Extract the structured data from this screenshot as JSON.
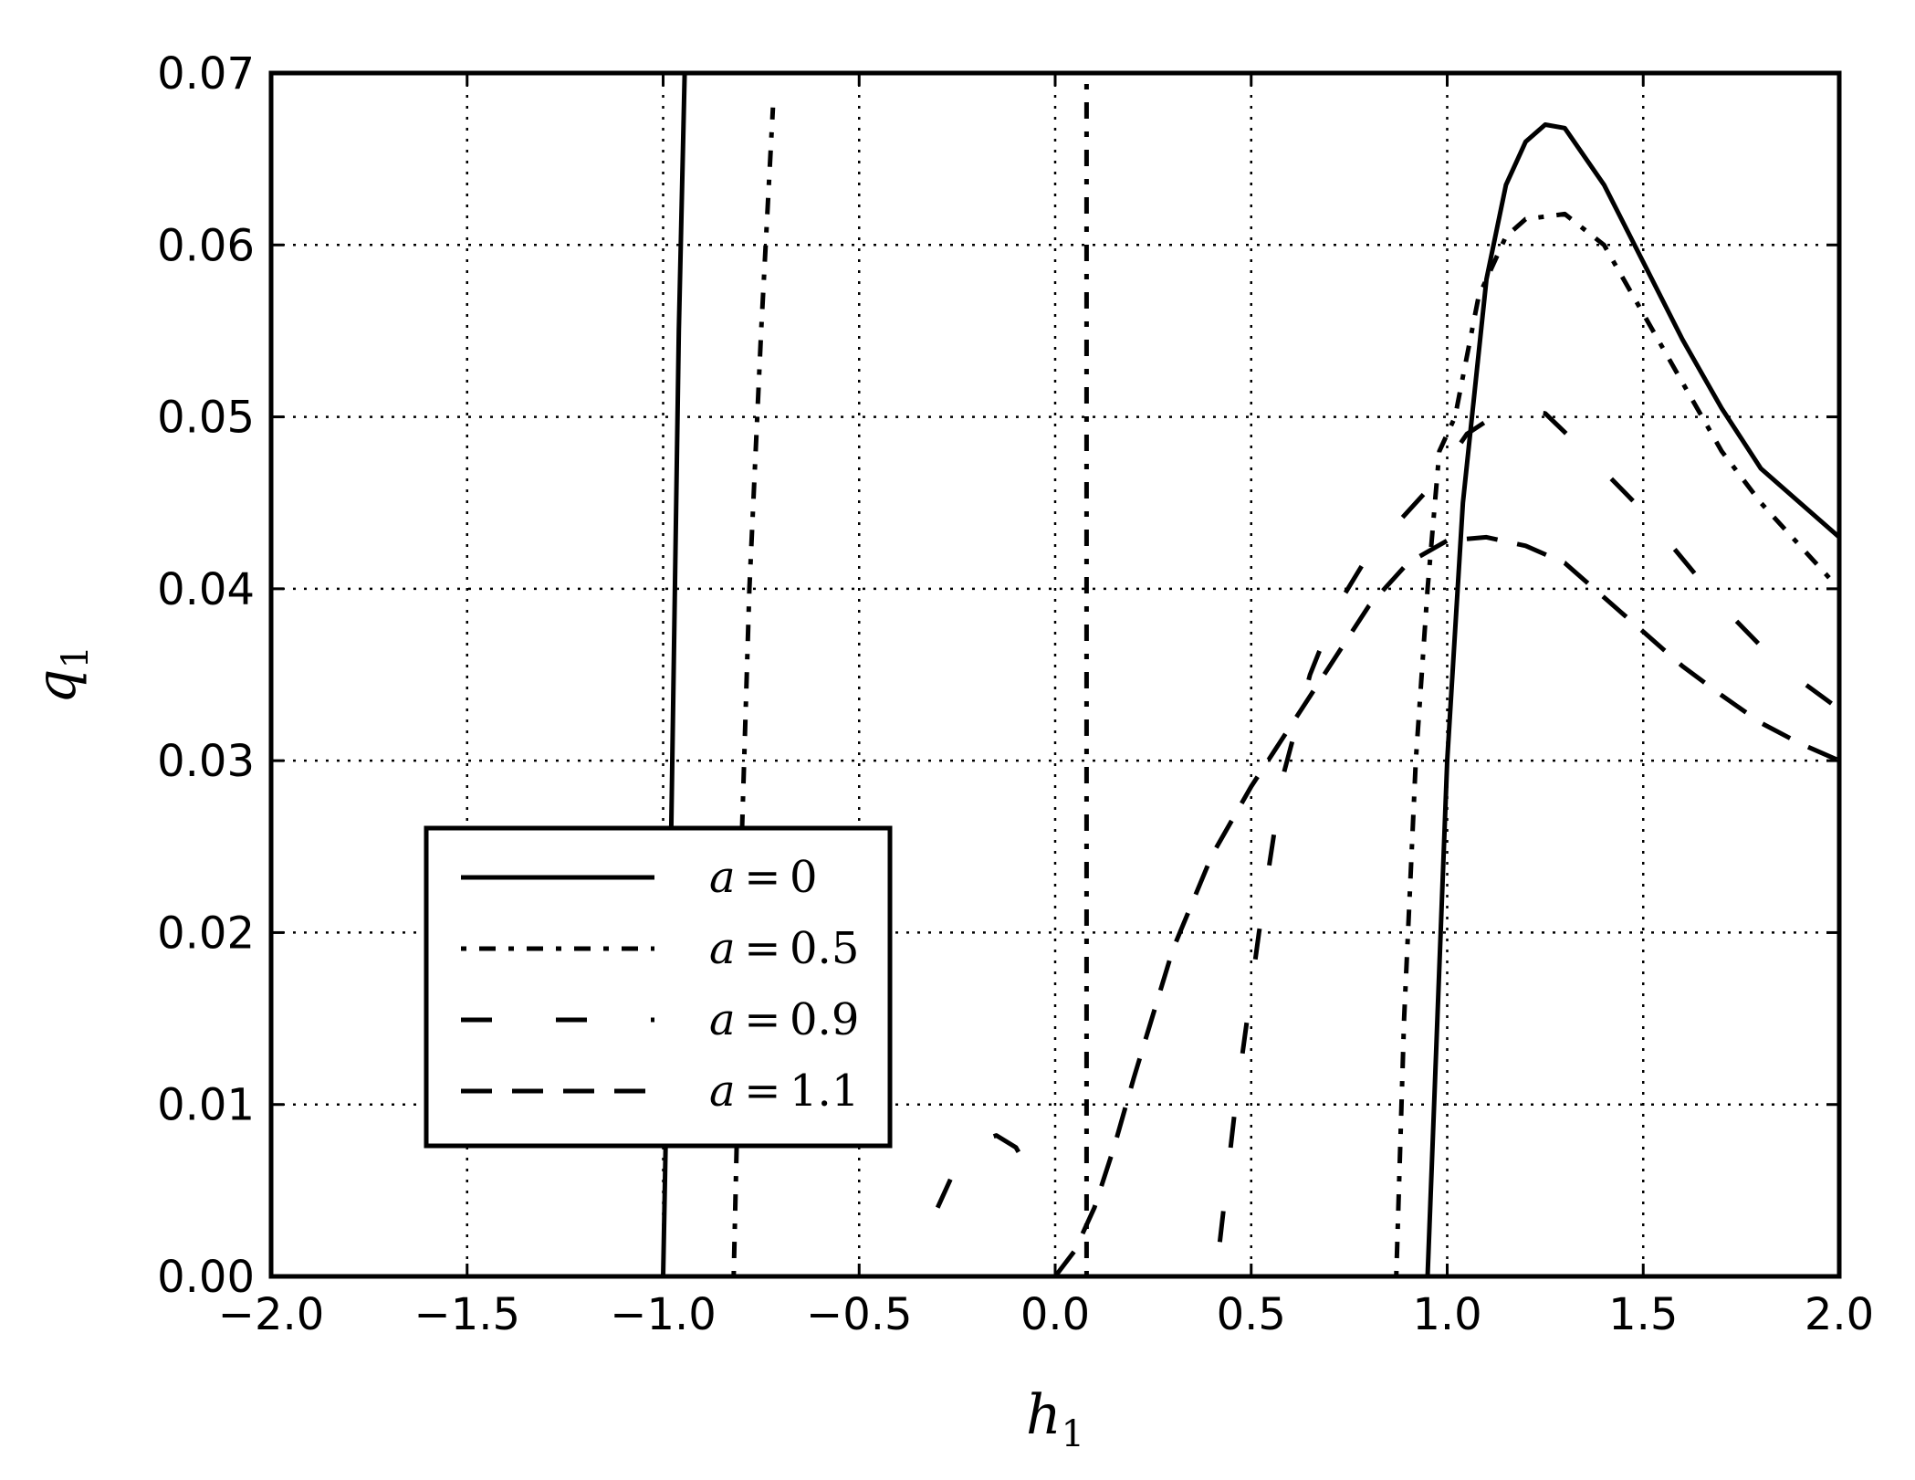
{
  "chart_data": {
    "type": "line",
    "title": "",
    "xlabel": "h",
    "xlabel_sub": "1",
    "ylabel": "q",
    "ylabel_sub": "1",
    "xlim": [
      -2.0,
      2.0
    ],
    "ylim": [
      0.0,
      0.07
    ],
    "x_ticks": [
      -2.0,
      -1.5,
      -1.0,
      -0.5,
      0.0,
      0.5,
      1.0,
      1.5,
      2.0
    ],
    "x_tick_labels": [
      "−2.0",
      "−1.5",
      "−1.0",
      "−0.5",
      "0.0",
      "0.5",
      "1.0",
      "1.5",
      "2.0"
    ],
    "y_ticks": [
      0.0,
      0.01,
      0.02,
      0.03,
      0.04,
      0.05,
      0.06,
      0.07
    ],
    "y_tick_labels": [
      "0.00",
      "0.01",
      "0.02",
      "0.03",
      "0.04",
      "0.05",
      "0.06",
      "0.07"
    ],
    "grid": true,
    "grid_style": "dotted",
    "legend_position": "lower-left",
    "series": [
      {
        "name": "a=0",
        "legend_label": "a = 0",
        "style": "solid",
        "color": "#000000",
        "segments": [
          [
            [
              -1.0,
              0.0
            ],
            [
              -0.99,
              0.012
            ],
            [
              -0.98,
              0.025
            ],
            [
              -0.97,
              0.04
            ],
            [
              -0.96,
              0.055
            ],
            [
              -0.945,
              0.07
            ]
          ],
          [
            [
              0.95,
              0.0
            ],
            [
              0.97,
              0.012
            ],
            [
              1.0,
              0.03
            ],
            [
              1.04,
              0.045
            ],
            [
              1.1,
              0.058
            ],
            [
              1.15,
              0.0635
            ],
            [
              1.2,
              0.066
            ],
            [
              1.25,
              0.067
            ],
            [
              1.3,
              0.0668
            ],
            [
              1.4,
              0.0635
            ],
            [
              1.5,
              0.059
            ],
            [
              1.6,
              0.0545
            ],
            [
              1.7,
              0.0505
            ],
            [
              1.8,
              0.047
            ],
            [
              1.9,
              0.045
            ],
            [
              2.0,
              0.043
            ]
          ]
        ]
      },
      {
        "name": "a=0.5",
        "legend_label": "a = 0.5",
        "style": "dashdot",
        "color": "#000000",
        "segments": [
          [
            [
              -0.82,
              0.0
            ],
            [
              -0.81,
              0.01
            ],
            [
              -0.8,
              0.025
            ],
            [
              -0.78,
              0.04
            ],
            [
              -0.75,
              0.055
            ],
            [
              -0.72,
              0.068
            ]
          ],
          [
            [
              0.08,
              0.0
            ],
            [
              0.08,
              0.07
            ]
          ],
          [
            [
              0.87,
              0.0
            ],
            [
              0.89,
              0.015
            ],
            [
              0.92,
              0.03
            ],
            [
              0.95,
              0.04
            ],
            [
              0.98,
              0.048
            ],
            [
              1.02,
              0.05
            ],
            [
              1.08,
              0.057
            ],
            [
              1.15,
              0.0605
            ],
            [
              1.2,
              0.0615
            ],
            [
              1.3,
              0.0618
            ],
            [
              1.4,
              0.06
            ],
            [
              1.5,
              0.056
            ],
            [
              1.6,
              0.052
            ],
            [
              1.7,
              0.048
            ],
            [
              1.8,
              0.045
            ],
            [
              1.9,
              0.0425
            ],
            [
              2.0,
              0.04
            ]
          ]
        ]
      },
      {
        "name": "a=0.9",
        "legend_label": "a = 0.9",
        "style": "dashed-long",
        "color": "#000000",
        "segments": [
          [
            [
              -0.3,
              0.004
            ],
            [
              -0.25,
              0.0065
            ],
            [
              -0.2,
              0.0078
            ],
            [
              -0.15,
              0.0082
            ],
            [
              -0.1,
              0.0075
            ],
            [
              -0.05,
              0.0055
            ]
          ],
          [
            [
              0.42,
              0.002
            ],
            [
              0.46,
              0.01
            ],
            [
              0.52,
              0.02
            ],
            [
              0.58,
              0.029
            ],
            [
              0.65,
              0.035
            ],
            [
              0.72,
              0.039
            ],
            [
              0.8,
              0.042
            ],
            [
              0.88,
              0.044
            ],
            [
              0.96,
              0.046
            ],
            [
              1.05,
              0.049
            ],
            [
              1.15,
              0.0505
            ],
            [
              1.25,
              0.0502
            ],
            [
              1.35,
              0.048
            ],
            [
              1.5,
              0.0445
            ],
            [
              1.7,
              0.039
            ],
            [
              1.85,
              0.0355
            ],
            [
              2.0,
              0.033
            ]
          ]
        ]
      },
      {
        "name": "a=1.1",
        "legend_label": "a = 1.1",
        "style": "dashed",
        "color": "#000000",
        "segments": [
          [
            [
              0.0,
              0.0
            ],
            [
              0.05,
              0.0015
            ],
            [
              0.1,
              0.004
            ],
            [
              0.15,
              0.0075
            ],
            [
              0.2,
              0.0115
            ],
            [
              0.3,
              0.019
            ],
            [
              0.4,
              0.0245
            ],
            [
              0.5,
              0.0285
            ],
            [
              0.6,
              0.032
            ],
            [
              0.7,
              0.0355
            ],
            [
              0.8,
              0.039
            ],
            [
              0.9,
              0.0415
            ],
            [
              1.0,
              0.0428
            ],
            [
              1.1,
              0.043
            ],
            [
              1.2,
              0.0425
            ],
            [
              1.3,
              0.0415
            ],
            [
              1.4,
              0.0395
            ],
            [
              1.5,
              0.0375
            ],
            [
              1.6,
              0.0355
            ],
            [
              1.7,
              0.0338
            ],
            [
              1.8,
              0.0322
            ],
            [
              1.9,
              0.031
            ],
            [
              2.0,
              0.03
            ]
          ]
        ]
      }
    ]
  }
}
